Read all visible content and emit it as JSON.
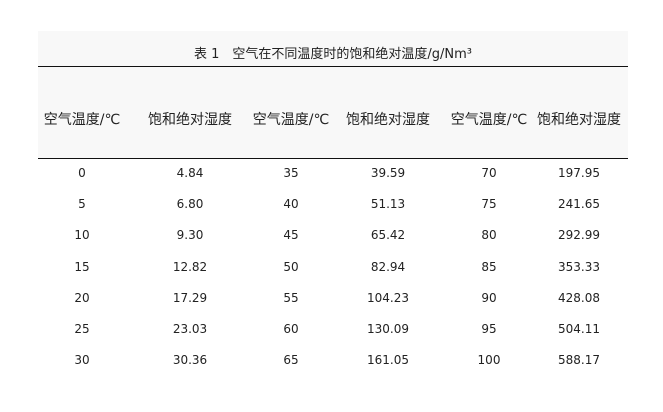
{
  "table": {
    "title": "表 1　空气在不同温度时的饱和绝对温度/g/Nm³",
    "headers": [
      "空气温度/℃",
      "饱和绝对湿度",
      "空气温度/℃",
      "饱和绝对湿度",
      "空气温度/℃",
      "饱和绝对湿度"
    ],
    "rows": [
      [
        "0",
        "4.84",
        "35",
        "39.59",
        "70",
        "197.95"
      ],
      [
        "5",
        "6.80",
        "40",
        "51.13",
        "75",
        "241.65"
      ],
      [
        "10",
        "9.30",
        "45",
        "65.42",
        "80",
        "292.99"
      ],
      [
        "15",
        "12.82",
        "50",
        "82.94",
        "85",
        "353.33"
      ],
      [
        "20",
        "17.29",
        "55",
        "104.23",
        "90",
        "428.08"
      ],
      [
        "25",
        "23.03",
        "60",
        "130.09",
        "95",
        "504.11"
      ],
      [
        "30",
        "30.36",
        "65",
        "161.05",
        "100",
        "588.17"
      ]
    ]
  }
}
